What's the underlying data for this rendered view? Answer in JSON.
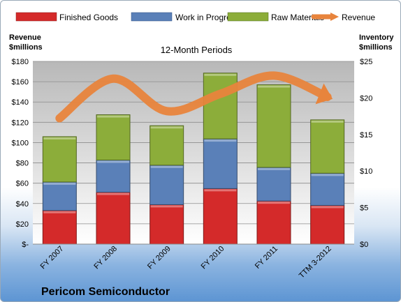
{
  "company_name": "Pericom Semiconductor",
  "chart_data": {
    "type": "bar",
    "stacked": true,
    "title": "12-Month Periods",
    "categories": [
      "FY 2007",
      "FY 2008",
      "FY 2009",
      "FY 2010",
      "FY 2011",
      "TTM 3-2012"
    ],
    "series": [
      {
        "name": "Finished Goods",
        "axis": "right",
        "color": "#d42a2a",
        "values": [
          4.6,
          7.1,
          5.4,
          7.6,
          5.9,
          5.3
        ]
      },
      {
        "name": "Work in Progress",
        "axis": "right",
        "color": "#5a80b8",
        "values": [
          3.9,
          4.4,
          5.4,
          6.8,
          4.6,
          4.4
        ]
      },
      {
        "name": "Raw Materials",
        "axis": "right",
        "color": "#8cad3a",
        "values": [
          6.2,
          6.2,
          5.4,
          9.0,
          11.3,
          7.3
        ]
      },
      {
        "name": "Revenue",
        "type": "line",
        "axis": "left",
        "color": "#e8843c",
        "values": [
          124,
          163,
          131,
          148,
          166,
          145
        ]
      }
    ],
    "left_axis": {
      "label_line1": "Revenue",
      "label_line2": "$millions",
      "ylim": [
        0,
        180
      ],
      "ticks": [
        0,
        20,
        40,
        60,
        80,
        100,
        120,
        140,
        160,
        180
      ],
      "tick_labels": [
        "$-",
        "$20",
        "$40",
        "$60",
        "$80",
        "$100",
        "$120",
        "$140",
        "$160",
        "$180"
      ]
    },
    "right_axis": {
      "label_line1": "Inventory",
      "label_line2": "$millions",
      "ylim": [
        0,
        25
      ],
      "ticks": [
        0,
        5,
        10,
        15,
        20,
        25
      ],
      "tick_labels": [
        "$0",
        "$5",
        "$10",
        "$15",
        "$20",
        "$25"
      ]
    },
    "grid": true,
    "legend": "top"
  }
}
